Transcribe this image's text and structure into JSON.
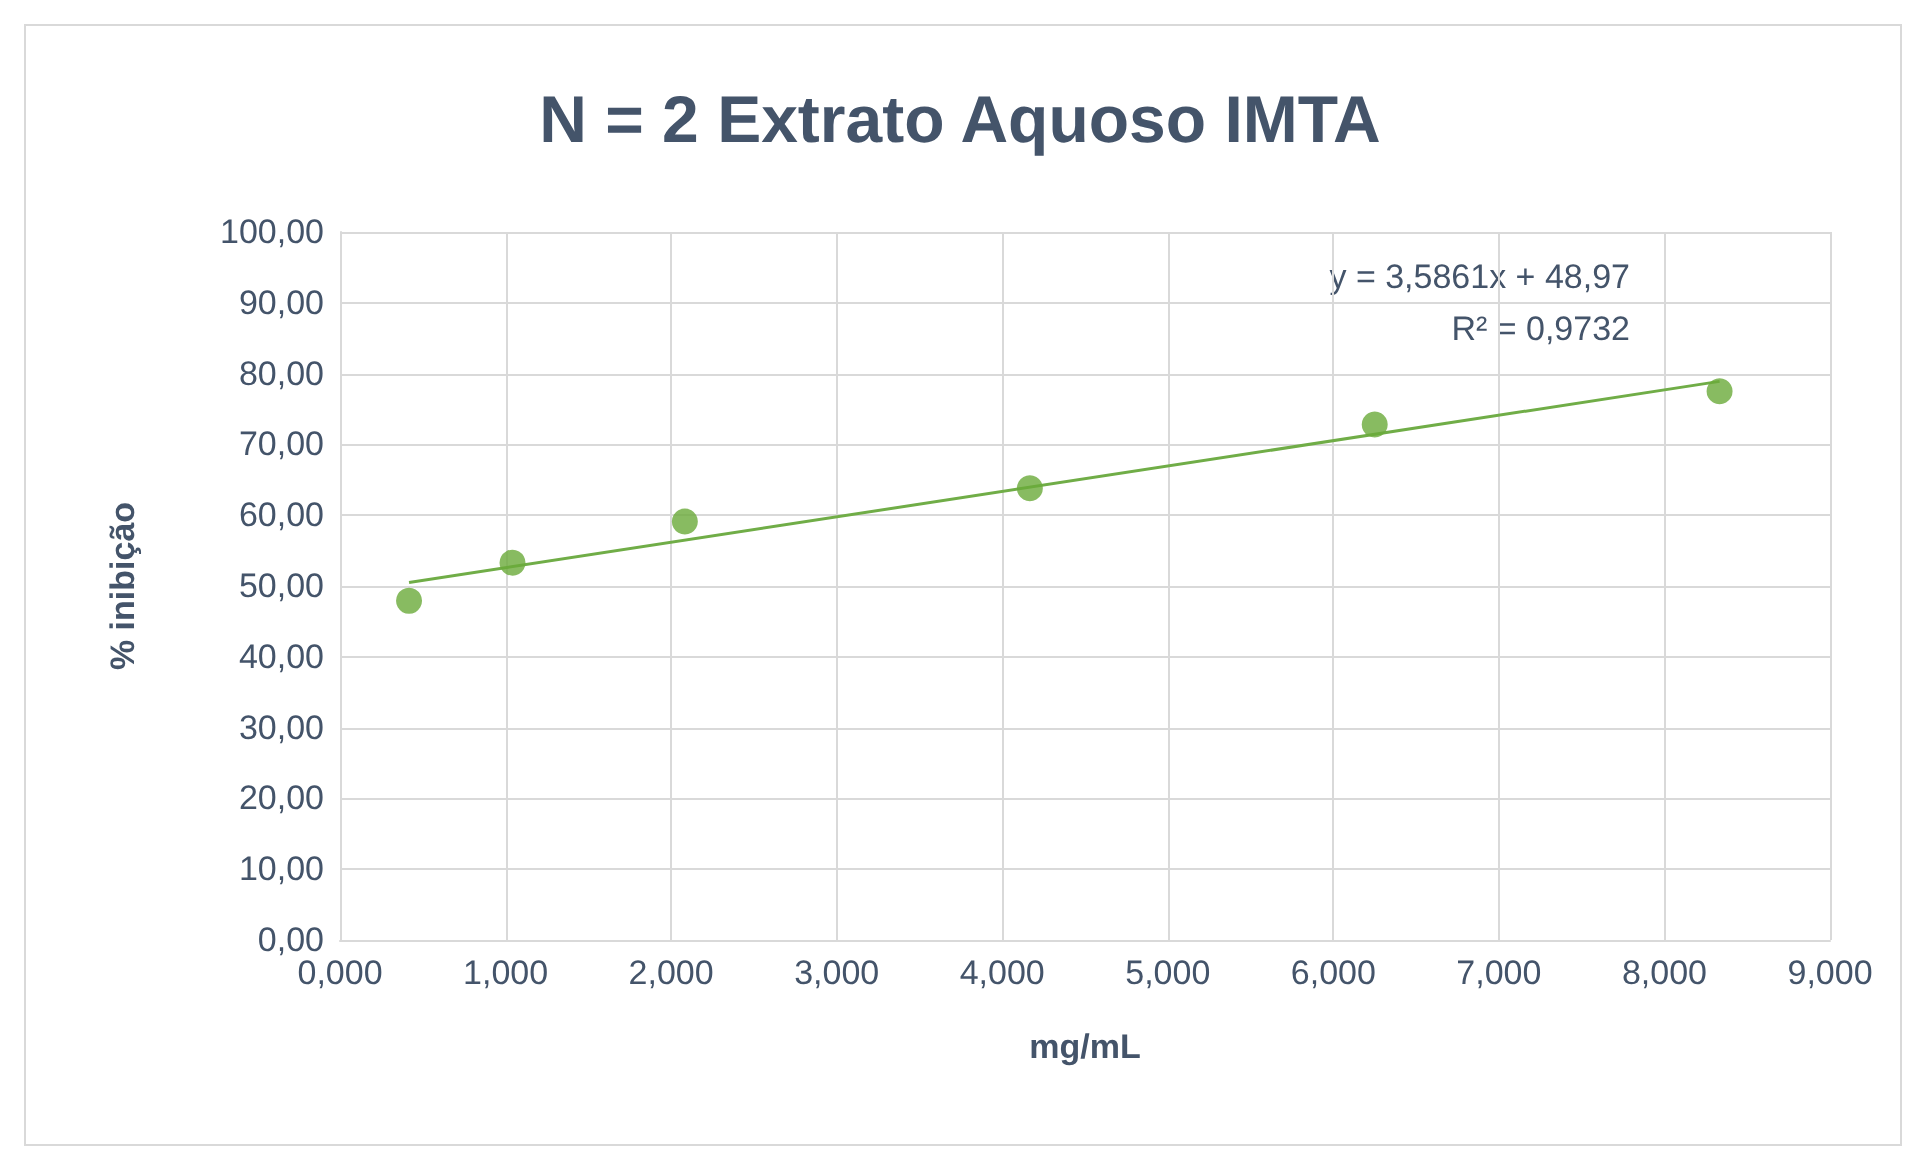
{
  "chart_data": {
    "type": "scatter",
    "title": "N = 2 Extrato Aquoso IMTA",
    "xlabel": "mg/mL",
    "ylabel": "% inibição",
    "series": [
      {
        "color": "#6aaa3a",
        "x": [
          0.417,
          1.042,
          2.083,
          4.167,
          6.25,
          8.333
        ],
        "values": [
          47.9,
          53.3,
          59.1,
          63.8,
          72.8,
          77.5
        ],
        "marker": "circle"
      },
      {
        "type": "line",
        "color": "#70ad47",
        "x": [
          0.417,
          8.333
        ],
        "values": [
          50.5,
          78.9
        ],
        "marker": "none"
      }
    ],
    "annotations": [
      "y = 3,5861x + 48,97",
      "R² = 0,9732"
    ],
    "xlim": [
      0,
      9
    ],
    "xticks": [
      {
        "value": 0,
        "label": "0,000"
      },
      {
        "value": 1,
        "label": "1,000"
      },
      {
        "value": 2,
        "label": "2,000"
      },
      {
        "value": 3,
        "label": "3,000"
      },
      {
        "value": 4,
        "label": "4,000"
      },
      {
        "value": 5,
        "label": "5,000"
      },
      {
        "value": 6,
        "label": "6,000"
      },
      {
        "value": 7,
        "label": "7,000"
      },
      {
        "value": 8,
        "label": "8,000"
      },
      {
        "value": 9,
        "label": "9,000"
      }
    ],
    "ylim": [
      0,
      100
    ],
    "yticks": [
      {
        "value": 0,
        "label": "0,00"
      },
      {
        "value": 10,
        "label": "10,00"
      },
      {
        "value": 20,
        "label": "20,00"
      },
      {
        "value": 30,
        "label": "30,00"
      },
      {
        "value": 40,
        "label": "40,00"
      },
      {
        "value": 50,
        "label": "50,00"
      },
      {
        "value": 60,
        "label": "60,00"
      },
      {
        "value": 70,
        "label": "70,00"
      },
      {
        "value": 80,
        "label": "80,00"
      },
      {
        "value": 90,
        "label": "90,00"
      },
      {
        "value": 100,
        "label": "100,00"
      }
    ],
    "grid": true
  }
}
